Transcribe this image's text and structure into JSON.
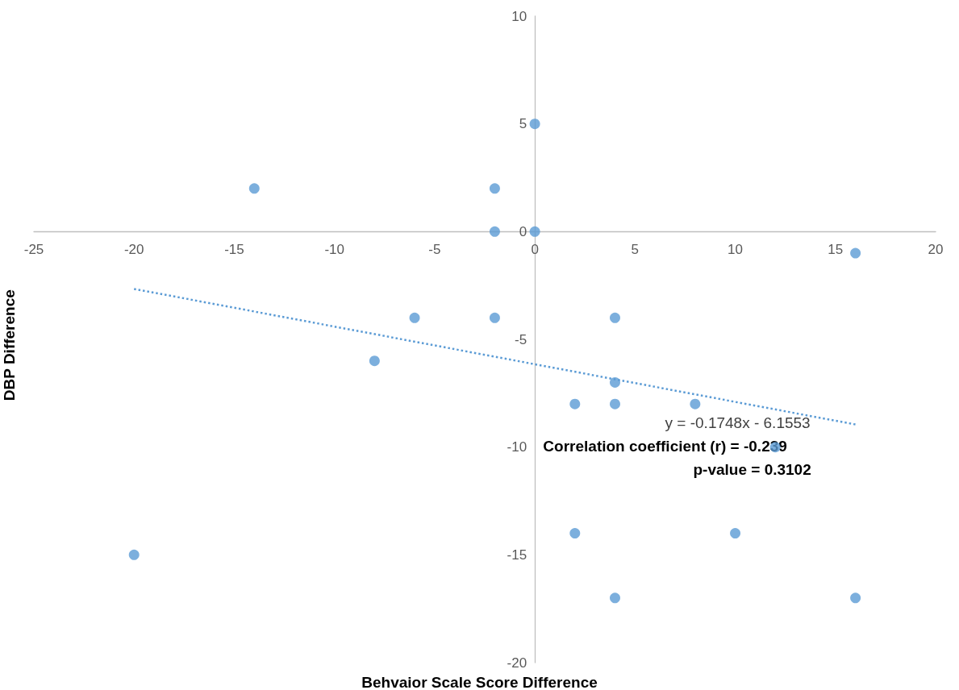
{
  "chart_data": {
    "type": "scatter",
    "xlabel": "Behvaior Scale Score Difference",
    "ylabel": "DBP Difference",
    "x": [
      0,
      -14,
      -2,
      -2,
      0,
      16,
      -6,
      -2,
      4,
      -8,
      4,
      2,
      4,
      8,
      12,
      2,
      10,
      -20,
      4,
      16
    ],
    "series": [
      {
        "color": "#5b9bd5",
        "marker": "circle",
        "values": [
          5,
          2,
          2,
          0,
          0,
          -1,
          -4,
          -4,
          -4,
          -6,
          -7,
          -8,
          -8,
          -8,
          -10,
          -14,
          -14,
          -15,
          -17,
          -17
        ]
      },
      {
        "type": "line",
        "color": "#5b9bd5",
        "line_style": "dotted",
        "marker": "none",
        "x": [
          -20,
          16
        ],
        "values": [
          -2.66,
          -8.95
        ]
      }
    ],
    "xlim": [
      -25,
      20
    ],
    "xticks": [
      -25,
      -20,
      -15,
      -10,
      -5,
      0,
      5,
      10,
      15,
      20
    ],
    "ylim": [
      -20,
      10
    ],
    "yticks": [
      -20,
      -15,
      -10,
      -5,
      0,
      5,
      10
    ],
    "annotations": [
      "y = -0.1748x - 6.1553",
      "Correlation coefficient (r) = -0.239",
      "p-value = 0.3102"
    ]
  }
}
